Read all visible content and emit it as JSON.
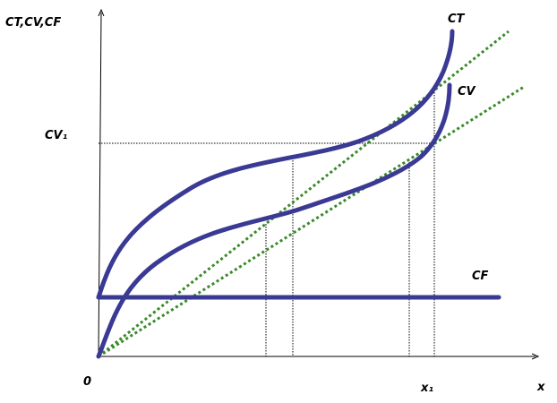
{
  "axes": {
    "y_label": "CT,CV,CF",
    "x_label": "x",
    "origin": "0"
  },
  "curves": {
    "ct": "CT",
    "cv": "CV",
    "cf": "CF"
  },
  "markers": {
    "cv1": "CV₁",
    "x1": "x₁"
  }
}
